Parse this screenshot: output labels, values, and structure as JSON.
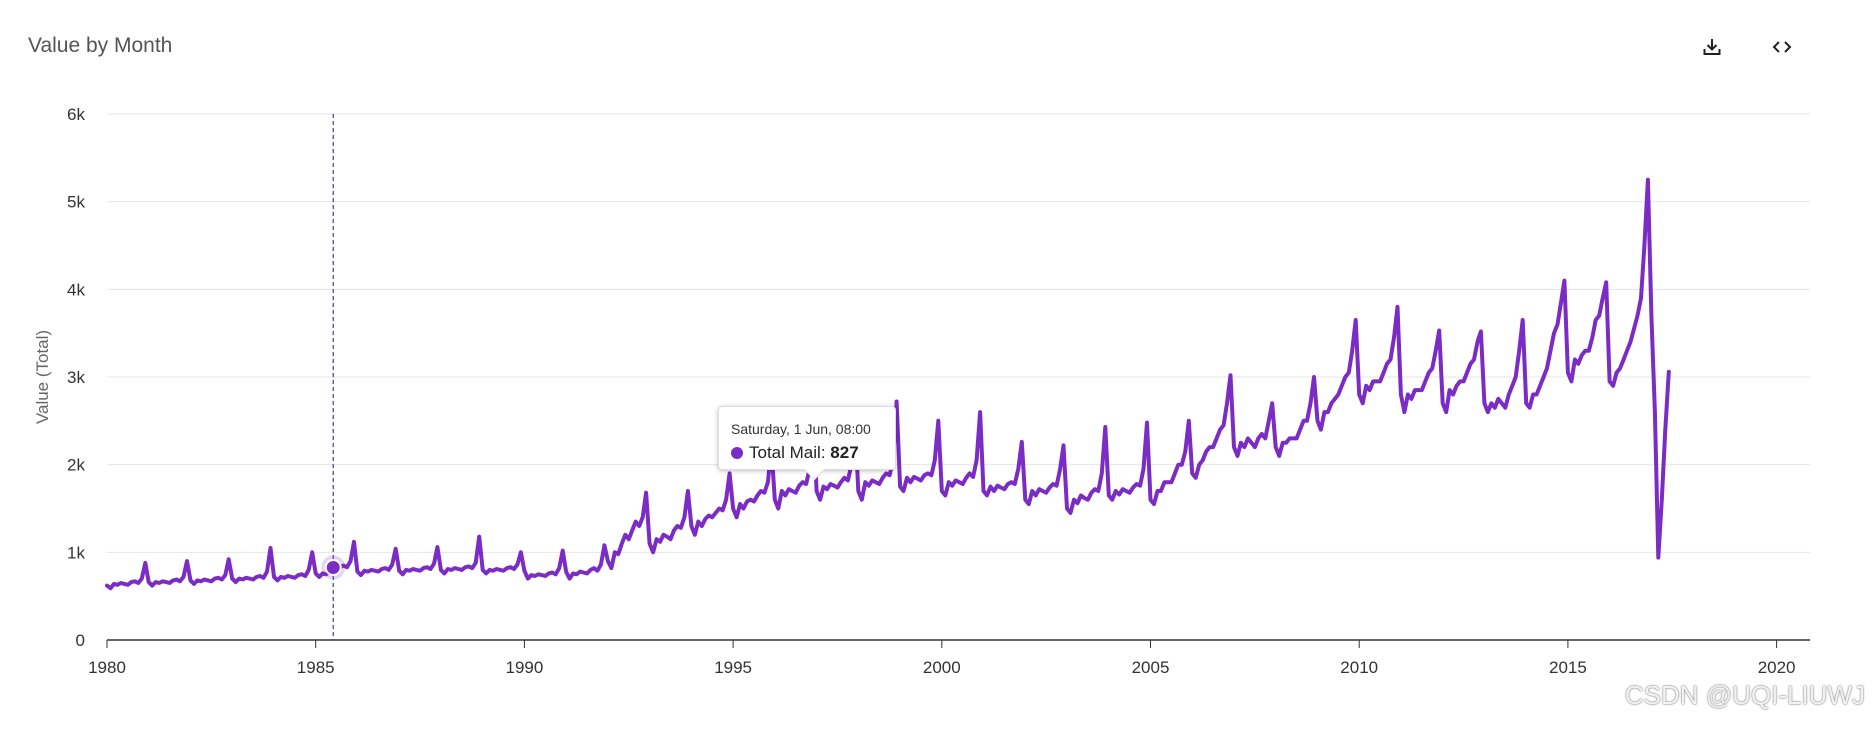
{
  "header": {
    "title": "Value by Month",
    "download_icon": "download-icon",
    "embed_icon": "code-icon"
  },
  "tooltip": {
    "date": "Saturday, 1 Jun, 08:00",
    "series": "Total Mail",
    "sep": ":",
    "value": "827"
  },
  "watermark": "CSDN @UQI-LIUWJ",
  "colors": {
    "line": "#7B2CC4",
    "grid": "#e6e6e6",
    "axis": "#333333",
    "crosshair": "#3b3b9a"
  },
  "chart_data": {
    "type": "line",
    "title": "Value by Month",
    "ylabel": "Value (Total)",
    "xlabel": "",
    "xlim": [
      1980,
      2020.8
    ],
    "ylim": [
      0,
      6000
    ],
    "yticks": [
      0,
      1000,
      2000,
      3000,
      4000,
      5000,
      6000
    ],
    "ytick_labels": [
      "0",
      "1k",
      "2k",
      "3k",
      "4k",
      "5k",
      "6k"
    ],
    "xticks": [
      1980,
      1985,
      1990,
      1995,
      2000,
      2005,
      2010,
      2015,
      2020
    ],
    "xtick_labels": [
      "1980",
      "1985",
      "1990",
      "1995",
      "2000",
      "2005",
      "2010",
      "2015",
      "2020"
    ],
    "grid": true,
    "legend": "none",
    "highlight": {
      "x": 1985.42,
      "y": 827
    },
    "series": [
      {
        "name": "Total Mail",
        "frequency": "monthly",
        "start": 1980.0,
        "values": [
          620,
          590,
          640,
          630,
          650,
          640,
          630,
          660,
          670,
          650,
          700,
          880,
          660,
          620,
          660,
          650,
          670,
          660,
          650,
          680,
          690,
          670,
          720,
          900,
          680,
          640,
          680,
          670,
          690,
          680,
          670,
          700,
          710,
          690,
          740,
          920,
          700,
          660,
          700,
          690,
          710,
          700,
          690,
          720,
          730,
          710,
          780,
          1050,
          720,
          680,
          720,
          710,
          730,
          720,
          710,
          740,
          750,
          730,
          800,
          1000,
          760,
          720,
          760,
          750,
          780,
          827,
          800,
          830,
          850,
          830,
          900,
          1120,
          780,
          740,
          790,
          780,
          800,
          790,
          780,
          810,
          820,
          800,
          860,
          1040,
          790,
          750,
          800,
          790,
          810,
          800,
          790,
          820,
          830,
          810,
          870,
          1060,
          800,
          760,
          810,
          800,
          820,
          810,
          800,
          830,
          840,
          820,
          880,
          1180,
          800,
          760,
          800,
          790,
          810,
          800,
          790,
          820,
          830,
          810,
          860,
          1000,
          790,
          700,
          740,
          730,
          750,
          740,
          730,
          760,
          770,
          750,
          820,
          1020,
          780,
          700,
          760,
          750,
          780,
          770,
          760,
          800,
          820,
          790,
          860,
          1080,
          900,
          820,
          1000,
          980,
          1100,
          1200,
          1150,
          1250,
          1350,
          1300,
          1400,
          1680,
          1100,
          1000,
          1150,
          1120,
          1200,
          1180,
          1150,
          1250,
          1300,
          1280,
          1400,
          1700,
          1300,
          1200,
          1350,
          1300,
          1380,
          1420,
          1400,
          1450,
          1500,
          1480,
          1600,
          1900,
          1500,
          1400,
          1550,
          1500,
          1580,
          1600,
          1580,
          1650,
          1700,
          1680,
          1800,
          2200,
          1600,
          1500,
          1700,
          1650,
          1720,
          1700,
          1680,
          1760,
          1800,
          1780,
          1950,
          2600,
          1700,
          1600,
          1750,
          1720,
          1780,
          1760,
          1740,
          1800,
          1850,
          1820,
          2000,
          2540,
          1700,
          1600,
          1800,
          1760,
          1820,
          1800,
          1780,
          1850,
          1900,
          1880,
          2050,
          2720,
          1750,
          1700,
          1850,
          1800,
          1860,
          1840,
          1820,
          1880,
          1900,
          1880,
          2050,
          2500,
          1700,
          1650,
          1800,
          1760,
          1820,
          1800,
          1780,
          1850,
          1900,
          1860,
          2050,
          2600,
          1700,
          1650,
          1750,
          1700,
          1760,
          1740,
          1720,
          1780,
          1800,
          1780,
          1950,
          2260,
          1600,
          1550,
          1700,
          1650,
          1720,
          1700,
          1680,
          1740,
          1780,
          1760,
          1950,
          2220,
          1500,
          1450,
          1600,
          1560,
          1650,
          1620,
          1600,
          1680,
          1720,
          1700,
          1900,
          2430,
          1650,
          1600,
          1700,
          1660,
          1720,
          1700,
          1680,
          1740,
          1780,
          1760,
          1950,
          2480,
          1600,
          1550,
          1700,
          1700,
          1800,
          1800,
          1800,
          1900,
          2000,
          2000,
          2150,
          2500,
          1900,
          1850,
          2000,
          2050,
          2150,
          2200,
          2200,
          2300,
          2400,
          2450,
          2700,
          3020,
          2200,
          2100,
          2250,
          2200,
          2300,
          2250,
          2200,
          2300,
          2350,
          2300,
          2500,
          2700,
          2200,
          2100,
          2250,
          2250,
          2300,
          2300,
          2300,
          2400,
          2500,
          2500,
          2700,
          3000,
          2500,
          2400,
          2600,
          2600,
          2700,
          2750,
          2800,
          2900,
          3000,
          3050,
          3300,
          3650,
          2800,
          2700,
          2900,
          2850,
          2950,
          2950,
          2950,
          3050,
          3150,
          3200,
          3450,
          3800,
          2800,
          2600,
          2800,
          2750,
          2850,
          2850,
          2850,
          2950,
          3050,
          3100,
          3300,
          3530,
          2700,
          2600,
          2850,
          2800,
          2900,
          2950,
          2950,
          3050,
          3150,
          3200,
          3400,
          3520,
          2700,
          2600,
          2700,
          2650,
          2750,
          2700,
          2650,
          2800,
          2900,
          3000,
          3300,
          3650,
          2700,
          2650,
          2800,
          2800,
          2900,
          3000,
          3100,
          3300,
          3500,
          3600,
          3850,
          4100,
          3050,
          2950,
          3200,
          3150,
          3250,
          3300,
          3300,
          3450,
          3650,
          3700,
          3900,
          4080,
          2950,
          2900,
          3050,
          3100,
          3200,
          3300,
          3400,
          3550,
          3700,
          3900,
          4500,
          5250,
          3700,
          2600,
          940,
          1600,
          2400,
          3060
        ]
      }
    ]
  }
}
